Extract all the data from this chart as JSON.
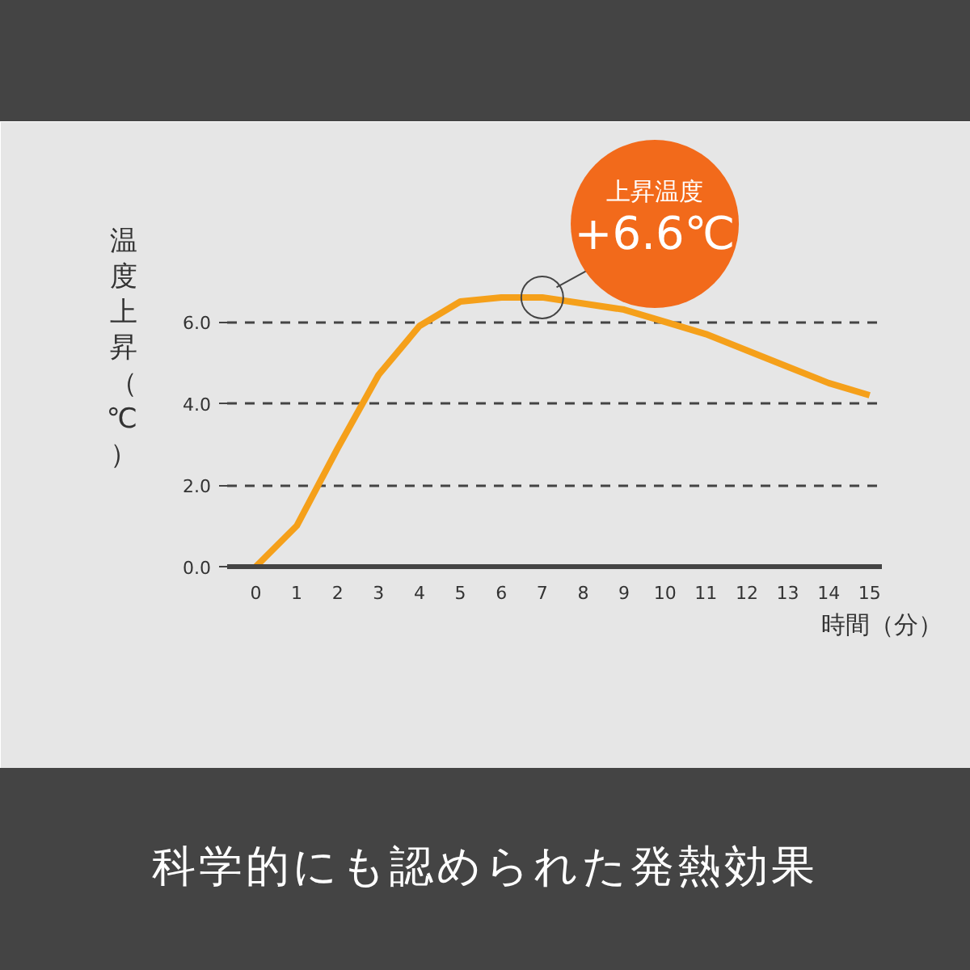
{
  "chart_data": {
    "type": "line",
    "title": "科学的にも認められた発熱効果",
    "xlabel": "時間（分）",
    "ylabel": "温度上昇（℃）",
    "x": [
      0,
      1,
      2,
      3,
      4,
      5,
      6,
      7,
      8,
      9,
      10,
      11,
      12,
      13,
      14,
      15
    ],
    "series": [
      {
        "color": "#f5a01a",
        "values": [
          0,
          1.0,
          2.9,
          4.7,
          5.9,
          6.5,
          6.6,
          6.6,
          6.45,
          6.3,
          6.0,
          5.7,
          5.3,
          4.9,
          4.5,
          4.2
        ]
      }
    ],
    "xlim": [
      -0.7,
      15.3
    ],
    "ylim": [
      0,
      10.7
    ],
    "xticks": [
      0,
      1,
      2,
      3,
      4,
      5,
      6,
      7,
      8,
      9,
      10,
      11,
      12,
      13,
      14,
      15
    ],
    "yticks": [
      {
        "value": 0,
        "label": "0.0"
      },
      {
        "value": 2,
        "label": "2.0"
      },
      {
        "value": 4,
        "label": "4.0"
      },
      {
        "value": 6,
        "label": "6.0"
      }
    ],
    "grid": "y",
    "line_style": "solid",
    "marker": "none",
    "annotations": [
      "上昇温度",
      {
        "text": "+6.6℃",
        "x": 7,
        "y": 6.6
      }
    ]
  }
}
